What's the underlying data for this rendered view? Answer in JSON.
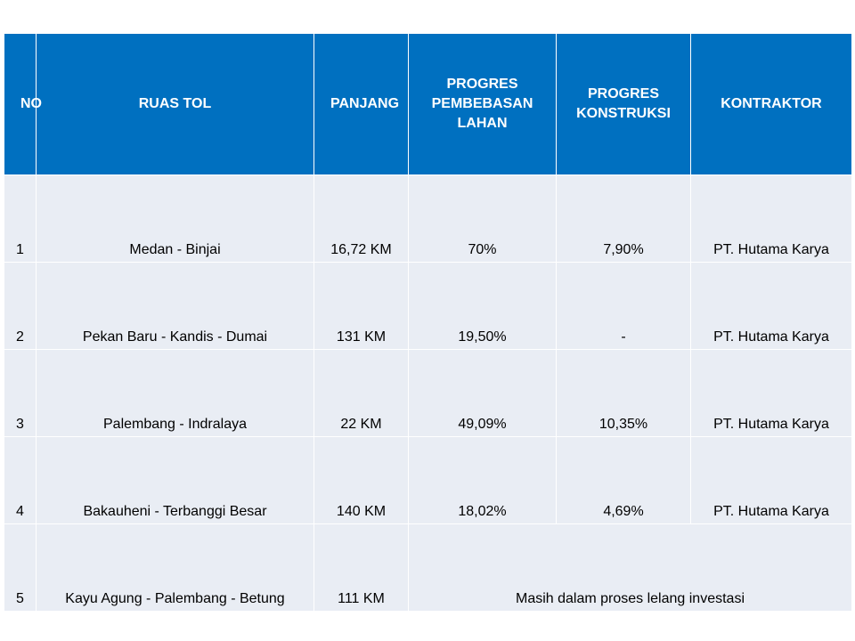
{
  "table": {
    "columns": [
      "NO",
      "RUAS TOL",
      "PANJANG",
      "PROGRES PEMBEBASAN LAHAN",
      "PROGRES KONSTRUKSI",
      "KONTRAKTOR"
    ],
    "rows": [
      [
        "1",
        "Medan - Binjai",
        "16,72 KM",
        "70%",
        "7,90%",
        "PT. Hutama Karya"
      ],
      [
        "2",
        "Pekan Baru - Kandis - Dumai",
        "131 KM",
        "19,50%",
        "-",
        "PT. Hutama Karya"
      ],
      [
        "3",
        "Palembang - Indralaya",
        "22 KM",
        "49,09%",
        "10,35%",
        "PT. Hutama Karya"
      ],
      [
        "4",
        "Bakauheni - Terbanggi Besar",
        "140 KM",
        "18,02%",
        "4,69%",
        "PT. Hutama Karya"
      ],
      [
        "5",
        "Kayu Agung - Palembang - Betung",
        "111 KM",
        "Masih dalam proses lelang investasi"
      ]
    ]
  }
}
